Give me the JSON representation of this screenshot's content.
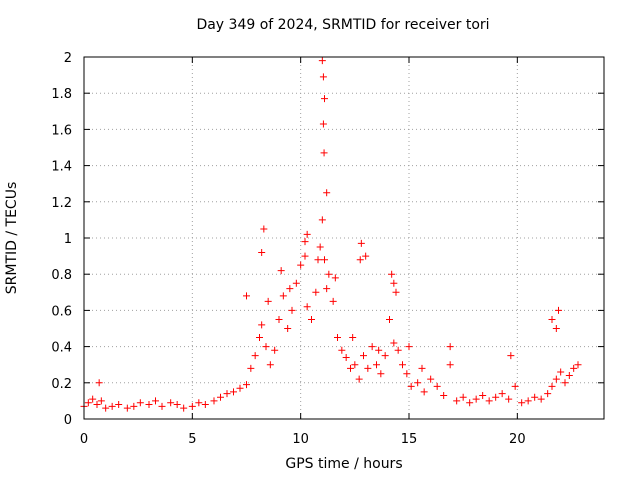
{
  "chart_data": {
    "type": "scatter",
    "title": "Day 349 of 2024, SRMTID for receiver tori",
    "xlabel": "GPS time / hours",
    "ylabel": "SRMTID / TECUs",
    "xlim": [
      0,
      24
    ],
    "ylim": [
      0,
      2
    ],
    "xticks": [
      0,
      5,
      10,
      15,
      20
    ],
    "yticks": [
      0,
      0.2,
      0.4,
      0.6,
      0.8,
      1,
      1.2,
      1.4,
      1.6,
      1.8,
      2
    ],
    "grid": true,
    "marker": "+",
    "color": "#ff0000",
    "series": [
      {
        "name": "SRMTID",
        "x": [
          0.0,
          0.2,
          0.4,
          0.6,
          0.8,
          1.0,
          1.3,
          1.6,
          2.0,
          2.3,
          2.6,
          3.0,
          3.3,
          3.6,
          4.0,
          4.3,
          4.6,
          5.0,
          5.3,
          5.6,
          6.0,
          6.3,
          6.6,
          6.9,
          7.2,
          7.5,
          7.7,
          7.9,
          8.1,
          8.2,
          8.4,
          8.6,
          8.8,
          9.0,
          9.2,
          9.4,
          9.6,
          9.8,
          10.0,
          10.2,
          10.3,
          10.5,
          10.7,
          10.9,
          11.0,
          11.1,
          11.2,
          11.3,
          11.5,
          11.7,
          11.9,
          12.1,
          12.3,
          12.5,
          12.7,
          12.9,
          13.1,
          13.3,
          13.5,
          13.7,
          13.9,
          14.1,
          14.3,
          14.5,
          14.7,
          14.9,
          15.1,
          15.4,
          15.7,
          16.0,
          16.3,
          16.6,
          16.9,
          17.2,
          17.5,
          17.8,
          18.1,
          18.4,
          18.7,
          19.0,
          19.3,
          19.6,
          19.9,
          20.2,
          20.5,
          20.8,
          21.1,
          21.4,
          21.6,
          21.8,
          22.0,
          22.2,
          22.4,
          22.6,
          22.8,
          0.7,
          8.3,
          8.2,
          9.1,
          10.3,
          11.0,
          11.05,
          11.1,
          11.05,
          11.08,
          12.8,
          12.75,
          14.2,
          14.3,
          16.9,
          19.7,
          21.6,
          21.9,
          21.8,
          7.5,
          8.5,
          9.5,
          10.2,
          10.8,
          11.2,
          11.6,
          12.4,
          13.0,
          13.6,
          14.4,
          15.0,
          15.6
        ],
        "y": [
          0.07,
          0.09,
          0.11,
          0.08,
          0.1,
          0.06,
          0.07,
          0.08,
          0.06,
          0.07,
          0.09,
          0.08,
          0.1,
          0.07,
          0.09,
          0.08,
          0.06,
          0.07,
          0.09,
          0.08,
          0.1,
          0.12,
          0.14,
          0.15,
          0.17,
          0.19,
          0.28,
          0.35,
          0.45,
          0.52,
          0.4,
          0.3,
          0.38,
          0.55,
          0.68,
          0.5,
          0.6,
          0.75,
          0.85,
          0.9,
          0.62,
          0.55,
          0.7,
          0.95,
          1.1,
          0.88,
          0.72,
          0.8,
          0.65,
          0.45,
          0.38,
          0.34,
          0.28,
          0.3,
          0.22,
          0.35,
          0.28,
          0.4,
          0.3,
          0.25,
          0.35,
          0.55,
          0.42,
          0.38,
          0.3,
          0.25,
          0.18,
          0.2,
          0.15,
          0.22,
          0.18,
          0.13,
          0.3,
          0.1,
          0.12,
          0.09,
          0.11,
          0.13,
          0.1,
          0.12,
          0.14,
          0.11,
          0.18,
          0.09,
          0.1,
          0.12,
          0.11,
          0.14,
          0.18,
          0.22,
          0.26,
          0.2,
          0.24,
          0.28,
          0.3,
          0.2,
          1.05,
          0.92,
          0.82,
          1.02,
          1.98,
          1.89,
          1.77,
          1.63,
          1.47,
          0.97,
          0.88,
          0.8,
          0.75,
          0.4,
          0.35,
          0.55,
          0.6,
          0.5,
          0.68,
          0.65,
          0.72,
          0.98,
          0.88,
          1.25,
          0.78,
          0.45,
          0.9,
          0.38,
          0.7,
          0.4,
          0.28
        ]
      }
    ]
  }
}
